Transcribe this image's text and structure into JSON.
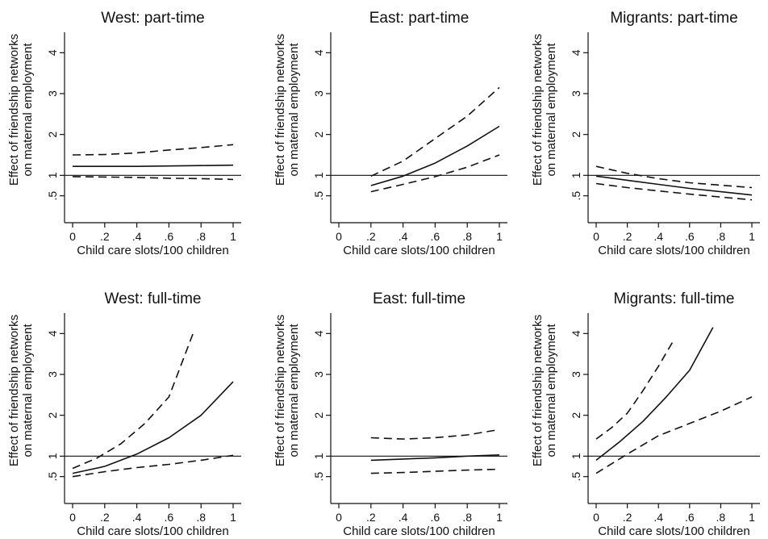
{
  "chart_data": [
    {
      "type": "line",
      "title": "West: part-time",
      "ylabel": [
        "Effect of friendship networks",
        "on maternal employment"
      ],
      "xlabel": "Child care slots/100 children",
      "xlim": [
        0,
        1
      ],
      "ylim": [
        0,
        4.5
      ],
      "xticks": [
        "0",
        ".2",
        ".4",
        ".6",
        ".8",
        "1"
      ],
      "xtick_values": [
        0,
        0.2,
        0.4,
        0.6,
        0.8,
        1
      ],
      "yticks": [
        ".5",
        "1",
        "2",
        "3",
        "4"
      ],
      "ytick_values": [
        0.5,
        1,
        2,
        3,
        4
      ],
      "reference_line_y": 1,
      "series": [
        {
          "style": "solid",
          "x": [
            0,
            0.2,
            0.4,
            0.6,
            0.8,
            1
          ],
          "y": [
            1.22,
            1.22,
            1.22,
            1.23,
            1.24,
            1.25
          ]
        },
        {
          "style": "dashed",
          "x": [
            0,
            0.2,
            0.4,
            0.6,
            0.8,
            1
          ],
          "y": [
            1.5,
            1.51,
            1.55,
            1.62,
            1.68,
            1.75
          ]
        },
        {
          "style": "dashed",
          "x": [
            0,
            0.2,
            0.4,
            0.6,
            0.8,
            1
          ],
          "y": [
            0.97,
            0.96,
            0.95,
            0.93,
            0.92,
            0.9
          ]
        }
      ]
    },
    {
      "type": "line",
      "title": "East: part-time",
      "ylabel": [
        "Effect of friendship networks",
        "on maternal employment"
      ],
      "xlabel": "Child care slots/100 children",
      "xlim": [
        0,
        1
      ],
      "ylim": [
        0,
        4.5
      ],
      "xticks": [
        "0",
        ".2",
        ".4",
        ".6",
        ".8",
        "1"
      ],
      "xtick_values": [
        0,
        0.2,
        0.4,
        0.6,
        0.8,
        1
      ],
      "yticks": [
        ".5",
        "1",
        "2",
        "3",
        "4"
      ],
      "ytick_values": [
        0.5,
        1,
        2,
        3,
        4
      ],
      "reference_line_y": 1,
      "series": [
        {
          "style": "solid",
          "x": [
            0.2,
            0.4,
            0.6,
            0.8,
            1
          ],
          "y": [
            0.75,
            0.98,
            1.3,
            1.72,
            2.2
          ]
        },
        {
          "style": "dashed",
          "x": [
            0.2,
            0.4,
            0.6,
            0.8,
            1
          ],
          "y": [
            0.98,
            1.35,
            1.9,
            2.45,
            3.15
          ]
        },
        {
          "style": "dashed",
          "x": [
            0.2,
            0.4,
            0.6,
            0.8,
            1
          ],
          "y": [
            0.6,
            0.78,
            0.97,
            1.2,
            1.5
          ]
        }
      ]
    },
    {
      "type": "line",
      "title": "Migrants: part-time",
      "ylabel": [
        "Effect of friendship networks",
        "on maternal employment"
      ],
      "xlabel": "Child care slots/100 children",
      "xlim": [
        0,
        1
      ],
      "ylim": [
        0,
        4.5
      ],
      "xticks": [
        "0",
        ".2",
        ".4",
        ".6",
        ".8",
        "1"
      ],
      "xtick_values": [
        0,
        0.2,
        0.4,
        0.6,
        0.8,
        1
      ],
      "yticks": [
        ".5",
        "1",
        "2",
        "3",
        "4"
      ],
      "ytick_values": [
        0.5,
        1,
        2,
        3,
        4
      ],
      "reference_line_y": 1,
      "series": [
        {
          "style": "solid",
          "x": [
            0,
            0.2,
            0.4,
            0.6,
            0.8,
            1
          ],
          "y": [
            0.98,
            0.88,
            0.78,
            0.68,
            0.6,
            0.52
          ]
        },
        {
          "style": "dashed",
          "x": [
            0,
            0.2,
            0.4,
            0.6,
            0.8,
            1
          ],
          "y": [
            1.22,
            1.05,
            0.92,
            0.82,
            0.76,
            0.7
          ]
        },
        {
          "style": "dashed",
          "x": [
            0,
            0.2,
            0.4,
            0.6,
            0.8,
            1
          ],
          "y": [
            0.8,
            0.7,
            0.62,
            0.54,
            0.47,
            0.4
          ]
        }
      ]
    },
    {
      "type": "line",
      "title": "West: full-time",
      "ylabel": [
        "Effect of friendship networks",
        "on maternal employment"
      ],
      "xlabel": "Child care slots/100 children",
      "xlim": [
        0,
        1
      ],
      "ylim": [
        0,
        4.5
      ],
      "xticks": [
        "0",
        ".2",
        ".4",
        ".6",
        ".8",
        "1"
      ],
      "xtick_values": [
        0,
        0.2,
        0.4,
        0.6,
        0.8,
        1
      ],
      "yticks": [
        ".5",
        "1",
        "2",
        "3",
        "4"
      ],
      "ytick_values": [
        0.5,
        1,
        2,
        3,
        4
      ],
      "reference_line_y": 1,
      "series": [
        {
          "style": "solid",
          "x": [
            0,
            0.2,
            0.4,
            0.6,
            0.8,
            1
          ],
          "y": [
            0.58,
            0.75,
            1.05,
            1.45,
            2.0,
            2.82
          ]
        },
        {
          "style": "dashed",
          "x": [
            0,
            0.15,
            0.3,
            0.45,
            0.6,
            0.75
          ],
          "y": [
            0.7,
            0.95,
            1.3,
            1.8,
            2.45,
            4.0
          ]
        },
        {
          "style": "dashed",
          "x": [
            0,
            0.2,
            0.4,
            0.6,
            0.8,
            1
          ],
          "y": [
            0.5,
            0.62,
            0.72,
            0.8,
            0.9,
            1.02
          ]
        }
      ]
    },
    {
      "type": "line",
      "title": "East: full-time",
      "ylabel": [
        "Effect of friendship networks",
        "on maternal employment"
      ],
      "xlabel": "Child care slots/100 children",
      "xlim": [
        0,
        1
      ],
      "ylim": [
        0,
        4.5
      ],
      "xticks": [
        "0",
        ".2",
        ".4",
        ".6",
        ".8",
        "1"
      ],
      "xtick_values": [
        0,
        0.2,
        0.4,
        0.6,
        0.8,
        1
      ],
      "yticks": [
        ".5",
        "1",
        "2",
        "3",
        "4"
      ],
      "ytick_values": [
        0.5,
        1,
        2,
        3,
        4
      ],
      "reference_line_y": 1,
      "series": [
        {
          "style": "solid",
          "x": [
            0.2,
            0.4,
            0.6,
            0.8,
            1
          ],
          "y": [
            0.9,
            0.93,
            0.96,
            1.0,
            1.03
          ]
        },
        {
          "style": "dashed",
          "x": [
            0.2,
            0.4,
            0.6,
            0.8,
            1
          ],
          "y": [
            1.45,
            1.42,
            1.45,
            1.52,
            1.65
          ]
        },
        {
          "style": "dashed",
          "x": [
            0.2,
            0.4,
            0.6,
            0.8,
            1
          ],
          "y": [
            0.58,
            0.6,
            0.63,
            0.66,
            0.68
          ]
        }
      ]
    },
    {
      "type": "line",
      "title": "Migrants: full-time",
      "ylabel": [
        "Effect of friendship networks",
        "on maternal employment"
      ],
      "xlabel": "Child care slots/100 children",
      "xlim": [
        0,
        1
      ],
      "ylim": [
        0,
        4.5
      ],
      "xticks": [
        "0",
        ".2",
        ".4",
        ".6",
        ".8",
        "1"
      ],
      "xtick_values": [
        0,
        0.2,
        0.4,
        0.6,
        0.8,
        1
      ],
      "yticks": [
        ".5",
        "1",
        "2",
        "3",
        "4"
      ],
      "ytick_values": [
        0.5,
        1,
        2,
        3,
        4
      ],
      "reference_line_y": 1,
      "series": [
        {
          "style": "solid",
          "x": [
            0,
            0.15,
            0.3,
            0.45,
            0.6,
            0.75
          ],
          "y": [
            0.9,
            1.35,
            1.85,
            2.45,
            3.1,
            4.15
          ]
        },
        {
          "style": "dashed",
          "x": [
            0,
            0.1,
            0.2,
            0.3,
            0.4,
            0.5
          ],
          "y": [
            1.42,
            1.7,
            2.05,
            2.6,
            3.2,
            3.85
          ]
        },
        {
          "style": "dashed",
          "x": [
            0,
            0.2,
            0.4,
            0.6,
            0.8,
            1
          ],
          "y": [
            0.58,
            1.05,
            1.5,
            1.8,
            2.1,
            2.45
          ]
        }
      ]
    }
  ]
}
